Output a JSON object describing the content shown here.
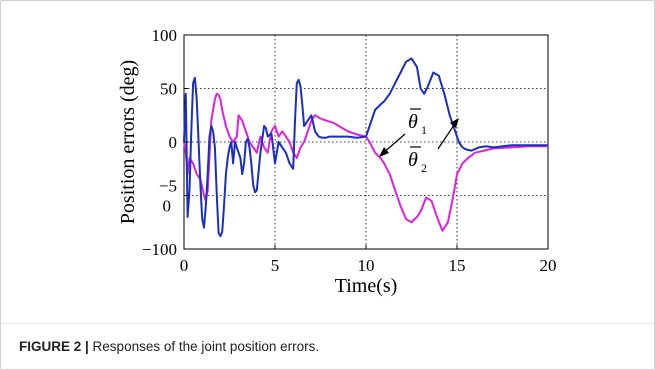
{
  "figure": {
    "caption_label": "FIGURE 2 |",
    "caption_text": " Responses of the joint position errors."
  },
  "chart_data": {
    "type": "line",
    "xlabel": "Time(s)",
    "ylabel": "Position errors (deg)",
    "xlim": [
      0,
      20
    ],
    "ylim": [
      -100,
      100
    ],
    "x_ticks": [
      0,
      5,
      10,
      15,
      20
    ],
    "x_tick_labels": [
      "0",
      "5",
      "10",
      "15",
      "20"
    ],
    "y_ticks": [
      100,
      50,
      0,
      -50,
      -100
    ],
    "y_tick_labels": [
      "100",
      "50",
      "0",
      "−5\n0",
      "−100"
    ],
    "grid": true,
    "annotations": [
      {
        "label": "θ̄₁",
        "target_series": 0
      },
      {
        "label": "θ̄₂",
        "target_series": 1
      }
    ],
    "series": [
      {
        "color": "#1a2fbf",
        "x": [
          0,
          0.1,
          0.2,
          0.3,
          0.4,
          0.5,
          0.6,
          0.7,
          0.8,
          0.9,
          1.0,
          1.1,
          1.2,
          1.3,
          1.4,
          1.5,
          1.6,
          1.7,
          1.8,
          1.9,
          2.0,
          2.1,
          2.2,
          2.3,
          2.4,
          2.5,
          2.6,
          2.7,
          2.8,
          2.9,
          3.0,
          3.1,
          3.2,
          3.3,
          3.4,
          3.5,
          3.6,
          3.7,
          3.8,
          3.9,
          4.0,
          4.2,
          4.4,
          4.5,
          4.6,
          4.8,
          5.0,
          5.2,
          5.4,
          5.6,
          5.8,
          6.0,
          6.1,
          6.2,
          6.3,
          6.4,
          6.5,
          6.6,
          6.8,
          7.0,
          7.2,
          7.4,
          7.6,
          7.8,
          8.0,
          8.5,
          9.0,
          9.5,
          10.0,
          10.2,
          10.5,
          10.8,
          11.0,
          11.3,
          11.6,
          11.9,
          12.2,
          12.5,
          12.8,
          13.0,
          13.2,
          13.4,
          13.7,
          14.0,
          14.3,
          14.6,
          14.9,
          15.1,
          15.3,
          15.5,
          15.8,
          16.2,
          16.6,
          17.0,
          18.0,
          19.0,
          20.0
        ],
        "values": [
          0,
          45,
          -70,
          -45,
          10,
          55,
          60,
          40,
          0,
          -40,
          -72,
          -80,
          -60,
          -30,
          5,
          15,
          10,
          -5,
          -50,
          -85,
          -88,
          -84,
          -60,
          -30,
          -15,
          -5,
          0,
          -20,
          0,
          -5,
          -10,
          -15,
          -30,
          -20,
          0,
          3,
          -5,
          -20,
          -40,
          -47,
          -45,
          -10,
          15,
          13,
          5,
          8,
          -20,
          0,
          -5,
          -10,
          -20,
          -25,
          20,
          55,
          58,
          52,
          35,
          15,
          20,
          25,
          10,
          5,
          4,
          4,
          5,
          5,
          5,
          4,
          5,
          15,
          30,
          35,
          38,
          45,
          55,
          65,
          75,
          78,
          70,
          50,
          45,
          52,
          65,
          62,
          45,
          25,
          10,
          0,
          -5,
          -7,
          -8,
          -5,
          -4,
          -5,
          -3,
          -3,
          -3
        ]
      },
      {
        "color": "#e020e0",
        "x": [
          0,
          0.1,
          0.2,
          0.3,
          0.5,
          0.7,
          0.9,
          1.1,
          1.2,
          1.3,
          1.5,
          1.7,
          1.8,
          1.9,
          2.0,
          2.1,
          2.3,
          2.5,
          2.7,
          2.9,
          3.0,
          3.2,
          3.4,
          3.6,
          3.8,
          4.0,
          4.2,
          4.4,
          4.6,
          4.8,
          5.0,
          5.2,
          5.4,
          5.6,
          5.8,
          6.0,
          6.2,
          6.4,
          6.6,
          6.8,
          7.0,
          7.2,
          7.5,
          7.8,
          8.2,
          8.6,
          9.0,
          9.5,
          10.0,
          10.2,
          10.5,
          10.8,
          11.0,
          11.3,
          11.6,
          11.9,
          12.2,
          12.5,
          12.8,
          13.0,
          13.3,
          13.6,
          13.9,
          14.2,
          14.5,
          14.8,
          15.0,
          15.3,
          15.6,
          16.0,
          16.5,
          17.0,
          18.0,
          19.0,
          20.0
        ],
        "values": [
          0,
          -10,
          -30,
          -15,
          -20,
          -30,
          -35,
          -50,
          -55,
          -45,
          20,
          40,
          45,
          44,
          40,
          30,
          15,
          5,
          0,
          5,
          25,
          20,
          10,
          0,
          -5,
          -10,
          5,
          -5,
          -10,
          10,
          15,
          5,
          10,
          5,
          0,
          -10,
          -15,
          -5,
          0,
          10,
          20,
          25,
          22,
          20,
          18,
          14,
          10,
          7,
          5,
          0,
          -10,
          -15,
          -20,
          -30,
          -45,
          -60,
          -72,
          -75,
          -70,
          -65,
          -52,
          -55,
          -70,
          -83,
          -75,
          -50,
          -30,
          -20,
          -15,
          -10,
          -8,
          -6,
          -5,
          -4,
          -4
        ]
      }
    ]
  }
}
